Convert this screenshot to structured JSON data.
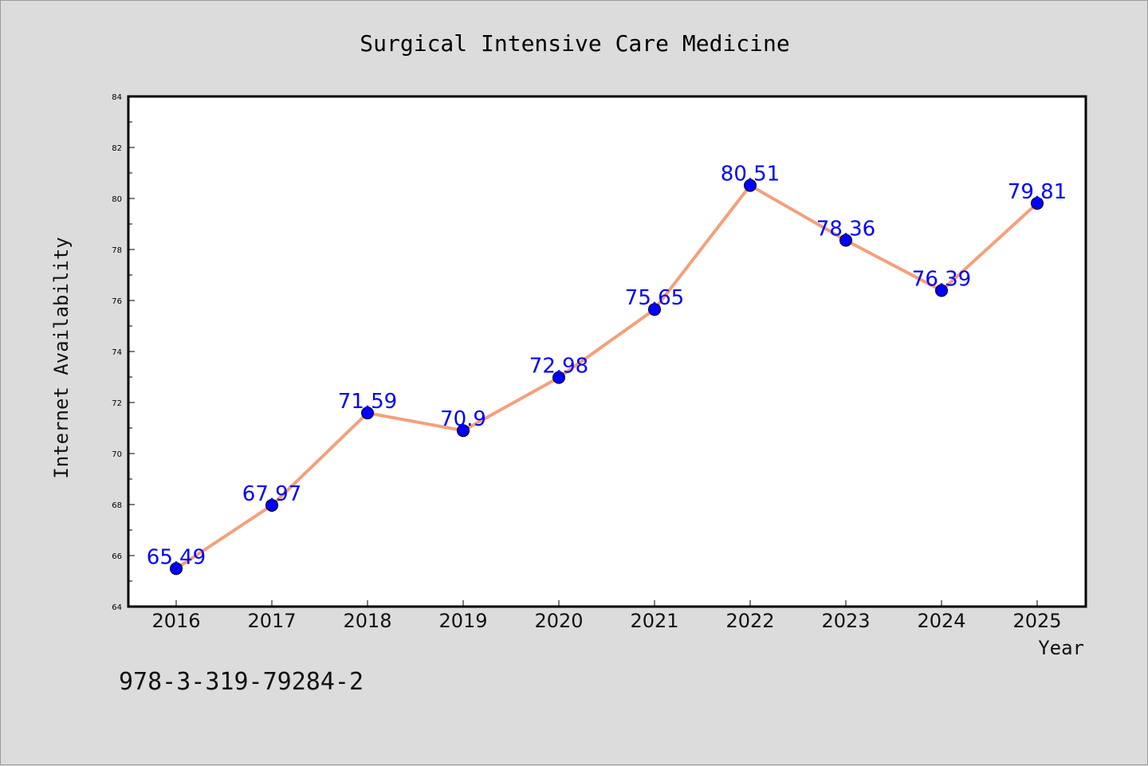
{
  "chart_data": {
    "type": "line",
    "title": "Surgical Intensive Care Medicine",
    "xlabel": "Year",
    "ylabel": "Internet Availability",
    "categories": [
      "2016",
      "2017",
      "2018",
      "2019",
      "2020",
      "2021",
      "2022",
      "2023",
      "2024",
      "2025"
    ],
    "series": [
      {
        "values": [
          65.49,
          67.97,
          71.59,
          70.9,
          72.98,
          75.65,
          80.51,
          78.36,
          76.39,
          79.81
        ],
        "data_labels": [
          "65.49",
          "67.97",
          "71.59",
          "70.9",
          "72.98",
          "75.65",
          "80.51",
          "78.36",
          "76.39",
          "79.81"
        ],
        "line_color": "#f4a07a",
        "marker_color": "#0000ff"
      }
    ],
    "ylim": [
      64,
      84
    ],
    "yticks": [
      "64",
      "66",
      "68",
      "70",
      "72",
      "74",
      "76",
      "78",
      "80",
      "82",
      "84"
    ],
    "grid": false,
    "legend": "none"
  },
  "footer": {
    "isbn": "978-3-319-79284-2"
  },
  "colors": {
    "background": "#dcdcdc",
    "plot_background": "#ffffff",
    "label_color": "#0000ff"
  }
}
